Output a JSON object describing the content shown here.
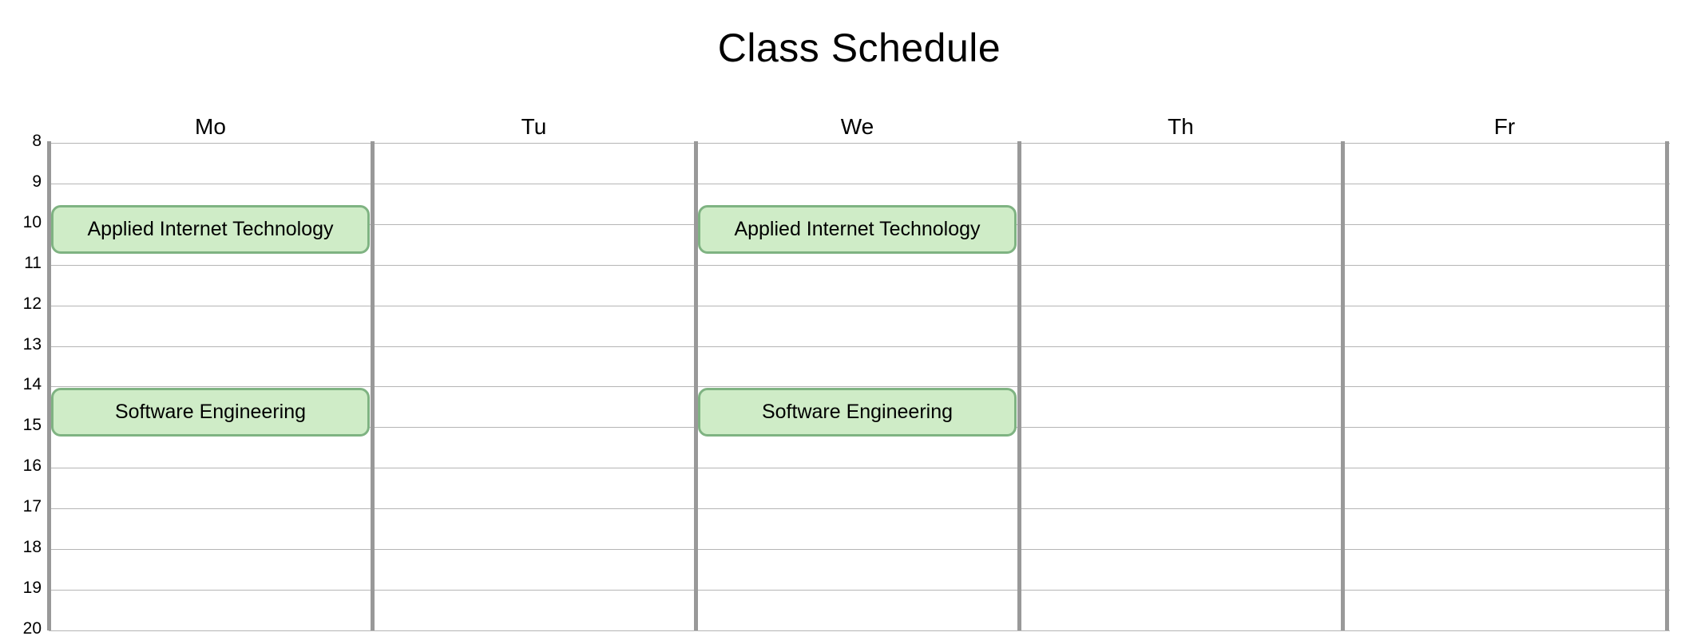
{
  "title": "Class Schedule",
  "days": [
    "Mo",
    "Tu",
    "We",
    "Th",
    "Fr"
  ],
  "hours": [
    "8",
    "9",
    "10",
    "11",
    "12",
    "13",
    "14",
    "15",
    "16",
    "17",
    "18",
    "19",
    "20"
  ],
  "events": [
    {
      "day": "Mo",
      "label": "Applied Internet Technology",
      "start": 9.5,
      "end": 10.7
    },
    {
      "day": "We",
      "label": "Applied Internet Technology",
      "start": 9.5,
      "end": 10.7
    },
    {
      "day": "Mo",
      "label": "Software Engineering",
      "start": 14.0,
      "end": 15.2
    },
    {
      "day": "We",
      "label": "Software Engineering",
      "start": 14.0,
      "end": 15.2
    }
  ],
  "colors": {
    "event_fill": "#cfecc7",
    "event_border": "#7fb382",
    "grid_line": "#b5b5b5",
    "day_separator": "#999999"
  }
}
